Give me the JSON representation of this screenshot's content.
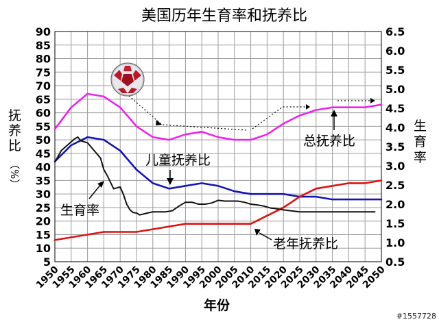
{
  "chart_data": {
    "type": "line",
    "title": "美国历年生育率和抚养比",
    "xlabel": "年份",
    "ylabel_left": [
      "抚",
      "养",
      "比",
      "（%）"
    ],
    "ylabel_right": [
      "生",
      "育",
      "率"
    ],
    "x_ticks": [
      "1950",
      "1955",
      "1960",
      "1965",
      "1970",
      "1975",
      "1980",
      "1985",
      "1990",
      "1995",
      "2000",
      "2005",
      "2010",
      "2015",
      "2020",
      "2025",
      "2030",
      "2035",
      "2040",
      "2045",
      "2050"
    ],
    "y_left_ticks": [
      5,
      10,
      15,
      20,
      25,
      30,
      35,
      40,
      45,
      50,
      55,
      60,
      65,
      70,
      75,
      80,
      85,
      90
    ],
    "y_right_ticks": [
      "0.5",
      "1.0",
      "1.5",
      "2.0",
      "2.5",
      "3.0",
      "3.5",
      "4.0",
      "4.5",
      "5.0",
      "5.5",
      "6.0",
      "6.5"
    ],
    "xlim": [
      1950,
      2050
    ],
    "ylim_left": [
      5,
      90
    ],
    "ylim_right": [
      0.5,
      6.5
    ],
    "grid": true,
    "series": [
      {
        "name": "总抚养比",
        "axis": "left",
        "color": "#ee22ee",
        "x": [
          1950,
          1955,
          1960,
          1965,
          1970,
          1975,
          1980,
          1985,
          1990,
          1995,
          2000,
          2005,
          2010,
          2015,
          2020,
          2025,
          2030,
          2035,
          2040,
          2045,
          2050
        ],
        "y": [
          54,
          62,
          67,
          66,
          62,
          55,
          51,
          50,
          52,
          53,
          51,
          50,
          50,
          52,
          56,
          59,
          61,
          62,
          62,
          62,
          63
        ]
      },
      {
        "name": "儿童抚养比",
        "axis": "left",
        "color": "#1515b5",
        "x": [
          1950,
          1955,
          1960,
          1965,
          1970,
          1975,
          1980,
          1985,
          1990,
          1995,
          2000,
          2005,
          2010,
          2015,
          2020,
          2025,
          2030,
          2035,
          2040,
          2045,
          2050
        ],
        "y": [
          42,
          48,
          51,
          50,
          46,
          39,
          34,
          32,
          33,
          34,
          33,
          31,
          30,
          30,
          30,
          29,
          29,
          28,
          28,
          28,
          28
        ]
      },
      {
        "name": "老年抚养比",
        "axis": "left",
        "color": "#dd1111",
        "x": [
          1950,
          1955,
          1960,
          1965,
          1970,
          1975,
          1980,
          1985,
          1990,
          1995,
          2000,
          2005,
          2010,
          2015,
          2020,
          2025,
          2030,
          2035,
          2040,
          2045,
          2050
        ],
        "y": [
          13,
          14,
          15,
          16,
          16,
          16,
          17,
          18,
          19,
          19,
          19,
          19,
          19,
          22,
          25,
          29,
          32,
          33,
          34,
          34,
          35
        ]
      },
      {
        "name": "生育率",
        "axis": "right",
        "color": "#111111",
        "x": [
          1950,
          1952,
          1954,
          1956,
          1957,
          1958,
          1960,
          1962,
          1964,
          1965,
          1966,
          1968,
          1970,
          1971,
          1972,
          1973,
          1974,
          1975,
          1976,
          1978,
          1980,
          1982,
          1984,
          1986,
          1988,
          1990,
          1992,
          1994,
          1996,
          1998,
          2000,
          2002,
          2004,
          2006,
          2008,
          2010,
          2012,
          2014,
          2016,
          2018,
          2020,
          2022,
          2025,
          2030,
          2035,
          2040,
          2045,
          2048
        ],
        "y": [
          3.1,
          3.4,
          3.55,
          3.7,
          3.75,
          3.65,
          3.6,
          3.4,
          3.2,
          2.9,
          2.75,
          2.4,
          2.45,
          2.25,
          2.0,
          1.85,
          1.78,
          1.77,
          1.72,
          1.76,
          1.8,
          1.8,
          1.8,
          1.83,
          1.95,
          2.05,
          2.05,
          2.0,
          2.0,
          2.03,
          2.1,
          2.08,
          2.08,
          2.08,
          2.05,
          2.0,
          1.98,
          1.95,
          1.9,
          1.88,
          1.85,
          1.83,
          1.8,
          1.8,
          1.8,
          1.8,
          1.8,
          1.8
        ]
      }
    ],
    "annotations": {
      "total": "总抚养比",
      "child": "儿童抚养比",
      "elderly": "老年抚养比",
      "fertility": "生育率"
    }
  },
  "watermark": "#1557728",
  "icons": {
    "ball": "soccer-ball-icon"
  }
}
